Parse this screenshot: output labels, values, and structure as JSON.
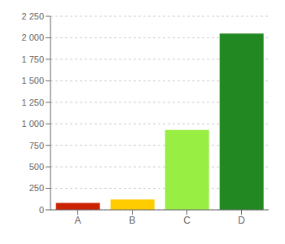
{
  "chart_data": {
    "type": "bar",
    "categories": [
      "A",
      "B",
      "C",
      "D"
    ],
    "values": [
      80,
      120,
      930,
      2050
    ],
    "colors": [
      "#cc2200",
      "#ffcc00",
      "#99ee44",
      "#228822"
    ],
    "ylim": [
      0,
      2250
    ],
    "yticks": [
      0,
      250,
      500,
      750,
      {
        "value": 1000,
        "label": "1 000"
      },
      {
        "value": 1250,
        "label": "1 250"
      },
      {
        "value": 1500,
        "label": "1 500"
      },
      {
        "value": 1750,
        "label": "1 750"
      },
      {
        "value": 2000,
        "label": "2 000"
      },
      {
        "value": 2250,
        "label": "2 250"
      }
    ],
    "grid": true
  }
}
